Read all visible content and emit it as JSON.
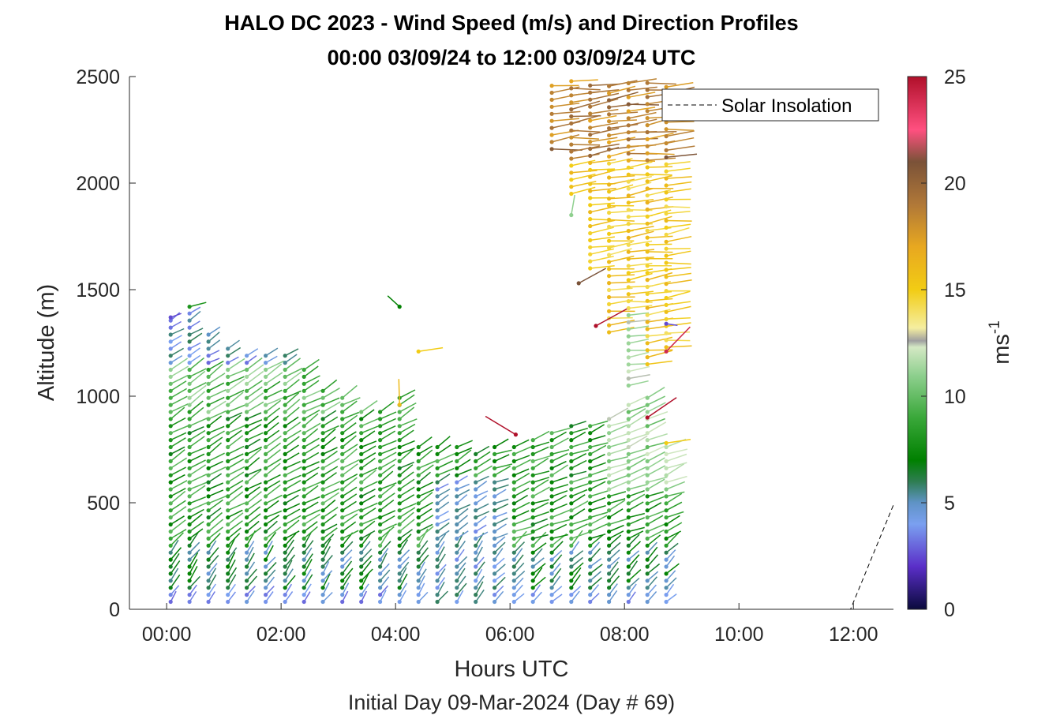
{
  "chart_data": {
    "type": "scatter",
    "title": "HALO DC 2023 - Wind Speed (m/s) and Direction Profiles",
    "subtitle": "00:00 03/09/24 to 12:00 03/09/24  UTC",
    "xlabel": "Hours UTC",
    "ylabel": "Altitude (m)",
    "footer": "Initial Day 09-Mar-2024 (Day # 69)",
    "xlim": [
      -0.65,
      12.7
    ],
    "ylim": [
      0,
      2500
    ],
    "xticks": [
      0,
      2,
      4,
      6,
      8,
      10,
      12
    ],
    "xtick_labels": [
      "00:00",
      "02:00",
      "04:00",
      "06:00",
      "08:00",
      "10:00",
      "12:00"
    ],
    "yticks": [
      0,
      500,
      1000,
      1500,
      2000,
      2500
    ],
    "ytick_labels": [
      "0",
      "500",
      "1000",
      "1500",
      "2000",
      "2500"
    ],
    "colorbar": {
      "label": "ms",
      "label_exponent": "-1",
      "range": [
        0,
        25
      ],
      "ticks": [
        0,
        5,
        10,
        15,
        20,
        25
      ],
      "tick_labels": [
        "0",
        "5",
        "10",
        "15",
        "20",
        "25"
      ],
      "stops": [
        {
          "v": 0,
          "c": "#0a0a3c"
        },
        {
          "v": 2,
          "c": "#5a2ec8"
        },
        {
          "v": 4,
          "c": "#7aa0f0"
        },
        {
          "v": 5,
          "c": "#5f93c6"
        },
        {
          "v": 6,
          "c": "#2e7d52"
        },
        {
          "v": 7,
          "c": "#008000"
        },
        {
          "v": 9,
          "c": "#3aa83a"
        },
        {
          "v": 11,
          "c": "#8fd08f"
        },
        {
          "v": 12.3,
          "c": "#d4e8c4"
        },
        {
          "v": 12.6,
          "c": "#a0a0a0"
        },
        {
          "v": 13.2,
          "c": "#f5eea0"
        },
        {
          "v": 15,
          "c": "#f2cc14"
        },
        {
          "v": 17,
          "c": "#e8a820"
        },
        {
          "v": 19,
          "c": "#b07838"
        },
        {
          "v": 21,
          "c": "#7a5238"
        },
        {
          "v": 22.5,
          "c": "#ff5080"
        },
        {
          "v": 25,
          "c": "#b0102a"
        }
      ]
    },
    "legend": {
      "location": "top-right",
      "entries": [
        "Solar Insolation"
      ]
    },
    "solar_insolation": {
      "x": [
        -0.65,
        11.95,
        12.7
      ],
      "y": [
        0,
        0,
        490
      ]
    },
    "wind_profiles": {
      "times_hours": [
        0.07,
        0.4,
        0.73,
        1.07,
        1.4,
        1.73,
        2.07,
        2.4,
        2.73,
        3.07,
        3.4,
        3.73,
        4.07,
        4.4,
        4.73,
        5.07,
        5.4,
        5.73,
        6.07,
        6.4,
        6.73,
        7.07,
        7.4,
        7.73,
        8.07,
        8.4,
        8.73
      ],
      "low_level_altitude_range_m": [
        35,
        1370
      ],
      "upper_level_altitude_range_m": [
        1050,
        2480
      ],
      "speed_range_ms": [
        3,
        25
      ]
    }
  }
}
